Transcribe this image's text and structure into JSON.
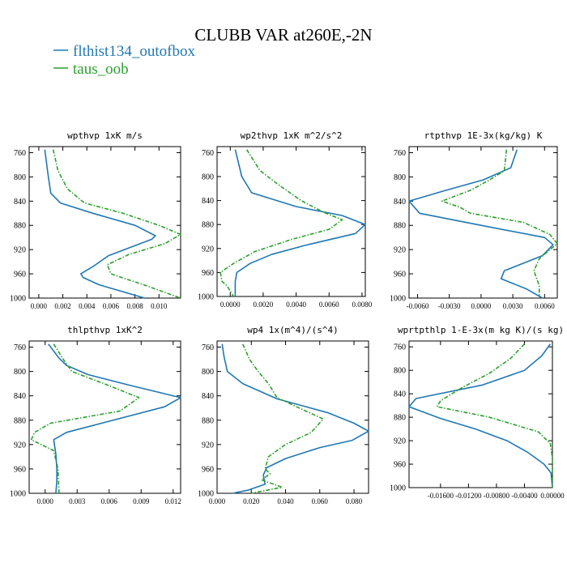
{
  "figure": {
    "title": "CLUBB VAR at260E,-2N",
    "legend": [
      {
        "label": "flthist134_outofbox",
        "color": "#1f77b4"
      },
      {
        "label": "taus_oob",
        "color": "#2ca02c"
      }
    ]
  },
  "chart_data": [
    {
      "type": "line",
      "title": "wpthvp   1xK m/s",
      "xlim": [
        -0.0008,
        0.0118
      ],
      "ylim": [
        1000,
        750
      ],
      "xticks": [
        "0.000",
        "0.002",
        "0.004",
        "0.006",
        "0.008",
        "0.010"
      ],
      "xtick_values": [
        0.0,
        0.002,
        0.004,
        0.006,
        0.008,
        0.01
      ],
      "yticks": [
        760,
        800,
        840,
        880,
        920,
        960,
        1000
      ],
      "series": [
        {
          "name": "flthist134_outofbox",
          "color": "#1f77b4",
          "dash": false,
          "points": [
            [
              0.0005,
              755
            ],
            [
              0.0008,
              800
            ],
            [
              0.001,
              827
            ],
            [
              0.0018,
              843
            ],
            [
              0.0045,
              860
            ],
            [
              0.008,
              880
            ],
            [
              0.0097,
              897
            ],
            [
              0.0094,
              903
            ],
            [
              0.0058,
              930
            ],
            [
              0.0045,
              948
            ],
            [
              0.0035,
              960
            ],
            [
              0.0037,
              966
            ],
            [
              0.005,
              978
            ],
            [
              0.0088,
              1000
            ]
          ]
        },
        {
          "name": "taus_oob",
          "color": "#2ca02c",
          "dash": true,
          "points": [
            [
              0.0012,
              755
            ],
            [
              0.0016,
              790
            ],
            [
              0.0024,
              820
            ],
            [
              0.0038,
              843
            ],
            [
              0.007,
              860
            ],
            [
              0.01,
              880
            ],
            [
              0.0118,
              895
            ],
            [
              0.0105,
              910
            ],
            [
              0.0075,
              928
            ],
            [
              0.0057,
              945
            ],
            [
              0.006,
              960
            ],
            [
              0.009,
              980
            ],
            [
              0.0118,
              1000
            ]
          ]
        }
      ]
    },
    {
      "type": "line",
      "title": "wp2thvp   1xK m^2/s^2",
      "xlim": [
        -0.0008,
        0.0082
      ],
      "ylim": [
        1000,
        750
      ],
      "xticks": [
        "0.0000",
        "0.0020",
        "0.0040",
        "0.0060",
        "0.0080"
      ],
      "xtick_values": [
        0.0,
        0.002,
        0.004,
        0.006,
        0.008
      ],
      "yticks": [
        760,
        800,
        840,
        880,
        920,
        960,
        1000
      ],
      "series": [
        {
          "name": "flthist134_outofbox",
          "color": "#1f77b4",
          "dash": false,
          "points": [
            [
              0.0003,
              755
            ],
            [
              0.0007,
              800
            ],
            [
              0.0013,
              827
            ],
            [
              0.004,
              850
            ],
            [
              0.0068,
              865
            ],
            [
              0.0082,
              880
            ],
            [
              0.0076,
              895
            ],
            [
              0.0045,
              915
            ],
            [
              0.0025,
              930
            ],
            [
              0.0012,
              945
            ],
            [
              0.0004,
              960
            ],
            [
              0.0003,
              975
            ],
            [
              0.0003,
              1000
            ]
          ]
        },
        {
          "name": "taus_oob",
          "color": "#2ca02c",
          "dash": true,
          "points": [
            [
              0.001,
              755
            ],
            [
              0.0018,
              790
            ],
            [
              0.003,
              815
            ],
            [
              0.0043,
              840
            ],
            [
              0.0057,
              860
            ],
            [
              0.0068,
              872
            ],
            [
              0.006,
              888
            ],
            [
              0.0037,
              905
            ],
            [
              0.0015,
              925
            ],
            [
              0.0002,
              945
            ],
            [
              -0.0006,
              960
            ],
            [
              -0.0005,
              975
            ],
            [
              -0.0002,
              982
            ],
            [
              0.0002,
              1000
            ]
          ]
        }
      ]
    },
    {
      "type": "line",
      "title": "rtpthvp   1E-3x(kg/kg) K",
      "xlim": [
        -0.0068,
        0.0072
      ],
      "ylim": [
        1000,
        750
      ],
      "xticks": [
        "-0.0060",
        "-0.0030",
        "0.0000",
        "0.0030",
        "0.0060"
      ],
      "xtick_values": [
        -0.006,
        -0.003,
        0.0,
        0.003,
        0.006
      ],
      "yticks": [
        760,
        800,
        840,
        880,
        920,
        960,
        1000
      ],
      "series": [
        {
          "name": "flthist134_outofbox",
          "color": "#1f77b4",
          "dash": false,
          "points": [
            [
              0.0034,
              755
            ],
            [
              0.0028,
              785
            ],
            [
              0.0002,
              805
            ],
            [
              -0.0035,
              823
            ],
            [
              -0.0068,
              840
            ],
            [
              -0.0058,
              860
            ],
            [
              0.0,
              880
            ],
            [
              0.006,
              900
            ],
            [
              0.0068,
              912
            ],
            [
              0.0058,
              930
            ],
            [
              0.0022,
              955
            ],
            [
              0.0019,
              968
            ],
            [
              0.0043,
              985
            ],
            [
              0.0058,
              1000
            ]
          ]
        },
        {
          "name": "taus_oob",
          "color": "#2ca02c",
          "dash": true,
          "points": [
            [
              0.0024,
              755
            ],
            [
              0.0022,
              790
            ],
            [
              0.0008,
              805
            ],
            [
              -0.001,
              822
            ],
            [
              -0.0037,
              840
            ],
            [
              -0.002,
              850
            ],
            [
              -0.001,
              860
            ],
            [
              0.004,
              875
            ],
            [
              0.0065,
              895
            ],
            [
              0.0072,
              910
            ],
            [
              0.0055,
              935
            ],
            [
              0.005,
              955
            ],
            [
              0.0055,
              980
            ],
            [
              0.0055,
              1000
            ]
          ]
        }
      ]
    },
    {
      "type": "line",
      "title": "thlpthvp   1xK^2",
      "xlim": [
        -0.0015,
        0.0127
      ],
      "ylim": [
        1000,
        750
      ],
      "xticks": [
        "0.000",
        "0.003",
        "0.006",
        "0.009",
        "0.012"
      ],
      "xtick_values": [
        0.0,
        0.003,
        0.006,
        0.009,
        0.012
      ],
      "yticks": [
        760,
        800,
        840,
        880,
        920,
        960,
        1000
      ],
      "series": [
        {
          "name": "flthist134_outofbox",
          "color": "#1f77b4",
          "dash": false,
          "points": [
            [
              0.0003,
              755
            ],
            [
              0.0013,
              778
            ],
            [
              0.002,
              790
            ],
            [
              0.004,
              805
            ],
            [
              0.008,
              823
            ],
            [
              0.0127,
              843
            ],
            [
              0.0112,
              858
            ],
            [
              0.002,
              900
            ],
            [
              0.0008,
              912
            ],
            [
              0.001,
              935
            ],
            [
              0.0011,
              960
            ],
            [
              0.0011,
              980
            ],
            [
              0.001,
              1000
            ]
          ]
        },
        {
          "name": "taus_oob",
          "color": "#2ca02c",
          "dash": true,
          "points": [
            [
              0.0008,
              755
            ],
            [
              0.0017,
              780
            ],
            [
              0.0025,
              800
            ],
            [
              0.0055,
              820
            ],
            [
              0.0088,
              843
            ],
            [
              0.007,
              865
            ],
            [
              0.0005,
              885
            ],
            [
              -0.001,
              900
            ],
            [
              -0.0013,
              912
            ],
            [
              0.0008,
              930
            ],
            [
              0.0012,
              960
            ],
            [
              0.0013,
              1000
            ]
          ]
        }
      ]
    },
    {
      "type": "line",
      "title": "wp4   1x(m^4)/(s^4)",
      "xlim": [
        0.0,
        0.0885
      ],
      "ylim": [
        1000,
        750
      ],
      "xticks": [
        "0.000",
        "0.020",
        "0.040",
        "0.060",
        "0.080"
      ],
      "xtick_values": [
        0.0,
        0.02,
        0.04,
        0.06,
        0.08
      ],
      "yticks": [
        760,
        800,
        840,
        880,
        920,
        960,
        1000
      ],
      "series": [
        {
          "name": "flthist134_outofbox",
          "color": "#1f77b4",
          "dash": false,
          "points": [
            [
              0.003,
              755
            ],
            [
              0.004,
              775
            ],
            [
              0.006,
              800
            ],
            [
              0.015,
              820
            ],
            [
              0.035,
              845
            ],
            [
              0.065,
              868
            ],
            [
              0.08,
              885
            ],
            [
              0.0885,
              898
            ],
            [
              0.079,
              913
            ],
            [
              0.06,
              925
            ],
            [
              0.04,
              943
            ],
            [
              0.029,
              958
            ],
            [
              0.027,
              970
            ],
            [
              0.028,
              985
            ],
            [
              0.018,
              995
            ],
            [
              0.009,
              1000
            ]
          ]
        },
        {
          "name": "taus_oob",
          "color": "#2ca02c",
          "dash": true,
          "points": [
            [
              0.015,
              755
            ],
            [
              0.019,
              780
            ],
            [
              0.024,
              800
            ],
            [
              0.03,
              820
            ],
            [
              0.035,
              843
            ],
            [
              0.048,
              860
            ],
            [
              0.062,
              878
            ],
            [
              0.055,
              900
            ],
            [
              0.04,
              920
            ],
            [
              0.03,
              940
            ],
            [
              0.028,
              960
            ],
            [
              0.031,
              968
            ],
            [
              0.026,
              978
            ],
            [
              0.038,
              990
            ],
            [
              0.02,
              1000
            ]
          ]
        }
      ]
    },
    {
      "type": "line",
      "title": "wprtpthlp   1-E-3x(m kg K)/(s kg)",
      "xlim": [
        -0.0205,
        0.0
      ],
      "ylim": [
        1000,
        750
      ],
      "xticks": [
        "-0.01600",
        "-0.01200",
        "-0.00800",
        "-0.00400",
        "0.00000"
      ],
      "xtick_values": [
        -0.016,
        -0.012,
        -0.008,
        -0.004,
        0.0
      ],
      "yticks": [
        760,
        800,
        840,
        880,
        920,
        960,
        1000
      ],
      "series": [
        {
          "name": "flthist134_outofbox",
          "color": "#1f77b4",
          "dash": false,
          "points": [
            [
              -0.0003,
              755
            ],
            [
              -0.0015,
              775
            ],
            [
              -0.004,
              800
            ],
            [
              -0.01,
              825
            ],
            [
              -0.0195,
              848
            ],
            [
              -0.0205,
              862
            ],
            [
              -0.016,
              882
            ],
            [
              -0.011,
              900
            ],
            [
              -0.0065,
              920
            ],
            [
              -0.0035,
              940
            ],
            [
              -0.0012,
              960
            ],
            [
              -0.0002,
              975
            ],
            [
              0.0,
              1000
            ]
          ]
        },
        {
          "name": "taus_oob",
          "color": "#2ca02c",
          "dash": true,
          "points": [
            [
              -0.004,
              755
            ],
            [
              -0.006,
              780
            ],
            [
              -0.009,
              805
            ],
            [
              -0.013,
              830
            ],
            [
              -0.016,
              852
            ],
            [
              -0.0165,
              862
            ],
            [
              -0.009,
              880
            ],
            [
              -0.002,
              905
            ],
            [
              -0.0003,
              925
            ],
            [
              0.0,
              950
            ],
            [
              0.0,
              1000
            ]
          ]
        }
      ]
    }
  ]
}
